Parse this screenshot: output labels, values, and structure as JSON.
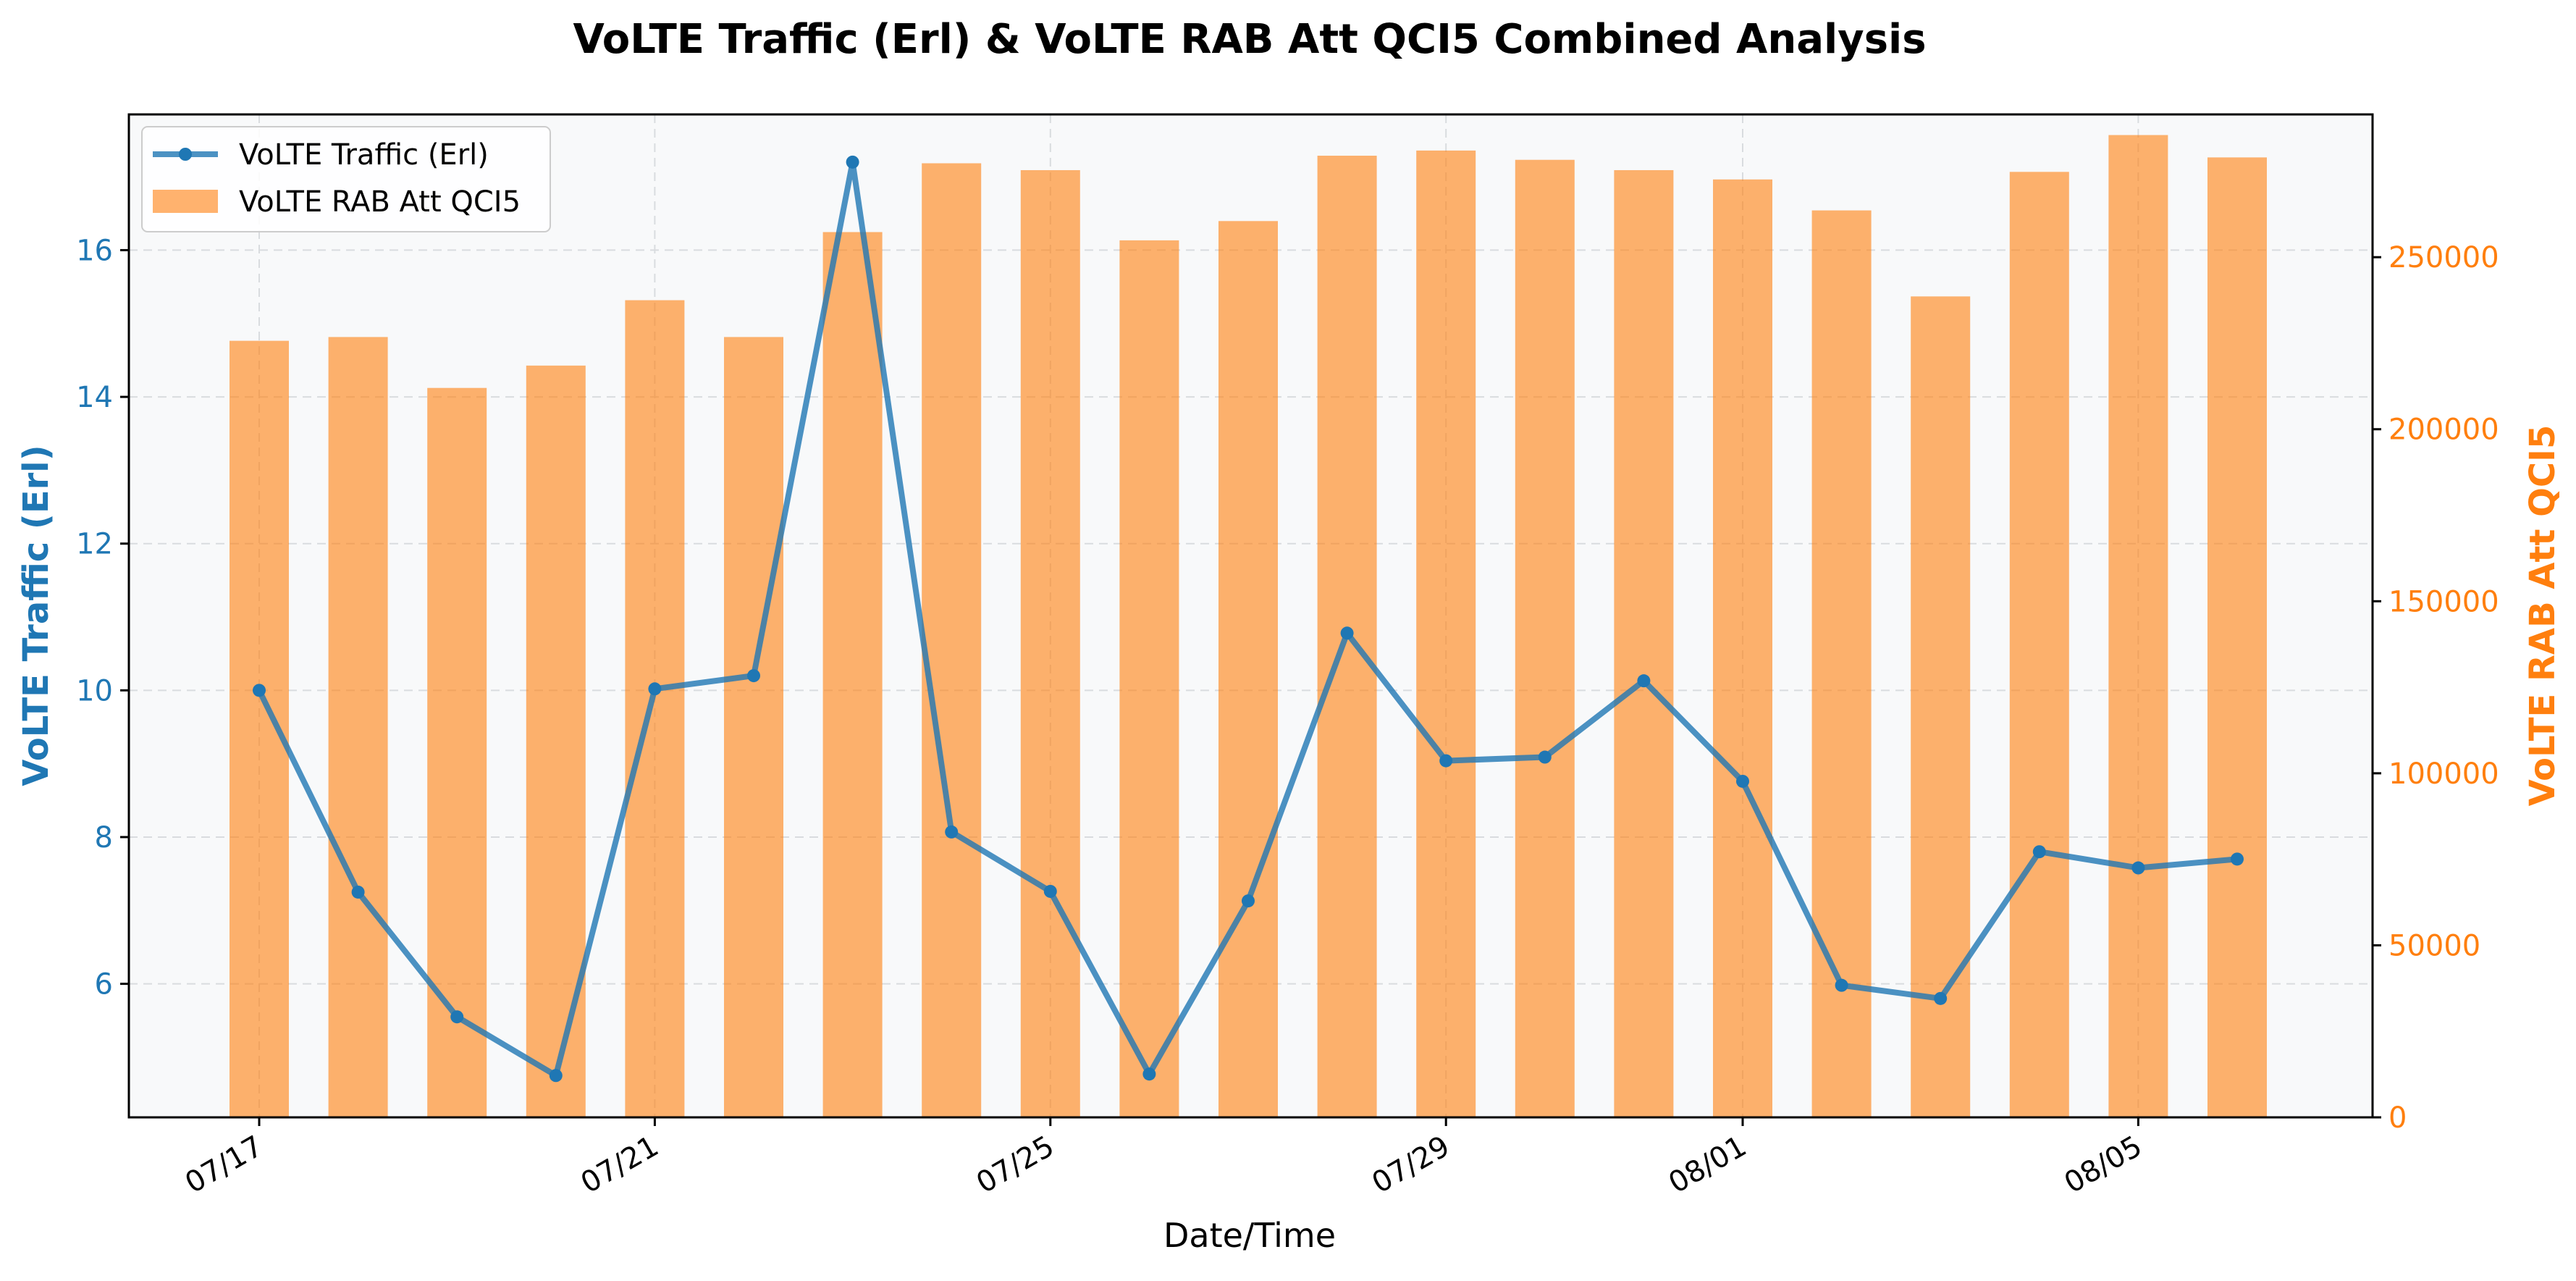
{
  "chart_data": {
    "type": "bar+line",
    "title": "VoLTE Traffic (Erl) & VoLTE RAB Att QCI5 Combined Analysis",
    "xlabel": "Date/Time",
    "ylabel_left": "VoLTE Traffic (Erl)",
    "ylabel_right": "VoLTE RAB Att QCI5",
    "x": [
      "07/17",
      "07/18",
      "07/19",
      "07/20",
      "07/21",
      "07/22",
      "07/23",
      "07/24",
      "07/25",
      "07/26",
      "07/27",
      "07/28",
      "07/29",
      "07/30",
      "07/31",
      "08/01",
      "08/02",
      "08/03",
      "08/04",
      "08/05",
      "08/06"
    ],
    "x_tick_labels": [
      "07/17",
      "07/21",
      "07/25",
      "07/29",
      "08/01",
      "08/05"
    ],
    "ylim_left": [
      4.18,
      17.85
    ],
    "ylim_right": [
      0,
      291500
    ],
    "yticks_left": [
      6,
      8,
      10,
      12,
      14,
      16
    ],
    "yticks_right": [
      0,
      50000,
      100000,
      150000,
      200000,
      250000
    ],
    "grid": true,
    "legend_position": "upper-left",
    "series": [
      {
        "name": "VoLTE Traffic (Erl)",
        "type": "line",
        "axis": "left",
        "color": "#1f77b4",
        "values": [
          10.0,
          7.25,
          5.55,
          4.75,
          10.02,
          10.2,
          17.2,
          8.07,
          7.26,
          4.77,
          7.13,
          10.78,
          9.04,
          9.09,
          10.13,
          8.76,
          5.98,
          5.8,
          7.8,
          7.58,
          7.7
        ]
      },
      {
        "name": "VoLTE RAB Att QCI5",
        "type": "bar",
        "axis": "right",
        "color": "#ff7f0e",
        "values": [
          225700,
          226800,
          212000,
          218500,
          237500,
          226800,
          257300,
          277300,
          275300,
          254900,
          260500,
          279500,
          281000,
          278300,
          275300,
          272600,
          263600,
          238600,
          274800,
          285500,
          279000
        ]
      }
    ]
  }
}
